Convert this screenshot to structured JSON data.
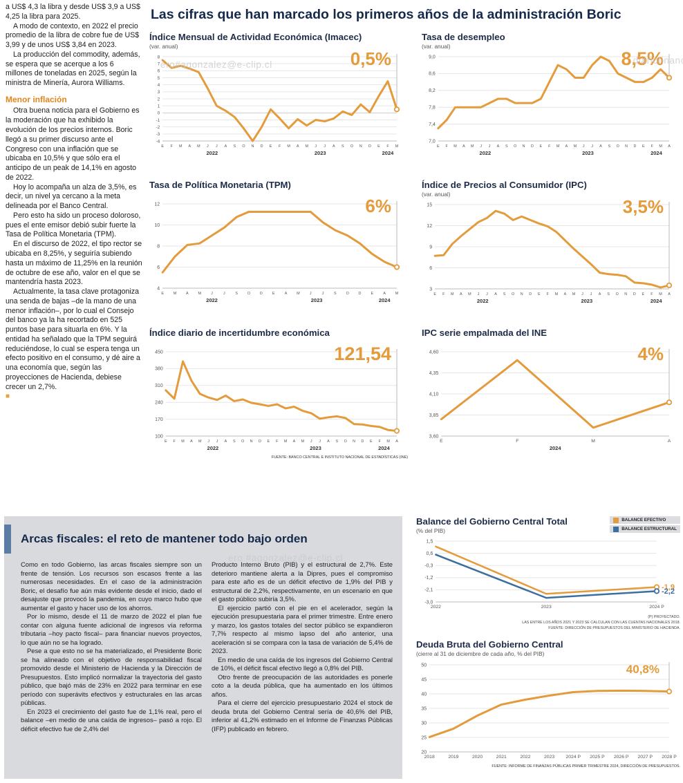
{
  "page": {
    "main_title": "Las cifras que han marcado los primeros años de la administración Boric",
    "watermarks": [
      "ero#agonzalez@e-clip.cl",
      "diariofinanc",
      "ero.#agonzalez@e-clip.cl"
    ],
    "colors": {
      "accent_orange": "#e39b3c",
      "accent_blue": "#3c6e9f",
      "title_navy": "#15294b",
      "heading_orange": "#e0861c",
      "box_gray": "#d9dadd",
      "bar_blue": "#5b7da3"
    }
  },
  "left_article": {
    "paragraphs_top": [
      "a US$ 4,3 la libra y desde US$ 3,9 a US$ 4,25 la libra para 2025.",
      "A modo de contexto, en 2022 el precio promedio de la libra de cobre fue de US$ 3,99 y de unos US$ 3,84 en 2023.",
      "La producción del commodity, además, se espera que se acerque a los 6 millones de toneladas en 2025, según la ministra de Minería, Aurora Williams."
    ],
    "heading": "Menor inflación",
    "paragraphs": [
      "Otra buena noticia para el Gobierno es la moderación que ha exhibido la evolución de los precios internos. Boric llegó a su primer discurso ante el Congreso con una inflación que se ubicaba en 10,5% y que sólo era el anticipo de un peak de 14,1% en agosto de 2022.",
      "Hoy lo acompaña un alza de 3,5%, es decir, un nivel ya cercano a la meta delineada por el Banco Central.",
      "Pero esto ha sido un proceso doloroso, pues el ente emisor debió subir fuerte la Tasa de Política Monetaria (TPM).",
      "En el discurso de 2022, el tipo rector se ubicaba en 8,25%, y seguiría subiendo hasta un máximo de 11,25% en la reunión de octubre de ese año, valor en el que se mantendría hasta 2023.",
      "Actualmente, la tasa clave protagoniza una senda de bajas –de la mano de una menor inflación–, por lo cual el Consejo del banco ya la ha recortado en 525 puntos base para situarla en 6%. Y la entidad ha señalado que la TPM seguirá reduciéndose, lo cual se espera tenga un efecto positivo en el consumo, y dé aire a una economía que, según las proyecciones de Hacienda, debiese crecer un 2,7%."
    ],
    "end_marker": "■"
  },
  "arcas": {
    "title": "Arcas fiscales: el reto de mantener todo bajo orden",
    "col1": [
      "Como en todo Gobierno, las arcas fiscales siempre son un frente de tensión. Los recursos son escasos frente a las numerosas necesidades. En el caso de la administración Boric, el desafío fue aún más evidente desde el inicio, dado el desajuste que provocó la pandemia, en cuyo marco hubo que aumentar el gasto y hacer uso de los ahorros.",
      "Por lo mismo, desde el 11 de marzo de 2022 el plan fue contar con alguna fuente adicional de ingresos vía reforma tributaria –hoy pacto fiscal– para financiar nuevos proyectos, lo que aún no se ha logrado.",
      "Pese a que esto no se ha materializado, el Presidente Boric se ha alineado con el objetivo de responsabilidad fiscal promovido desde el Ministerio de Hacienda y la Dirección de Presupuestos. Esto implicó normalizar la trayectoria del gasto público, que bajó más de 23% en 2022 para terminar en ese período con superávits efectivos y estructurales en las arcas públicas.",
      "En 2023 el crecimiento del gasto fue de 1,1% real, pero el balance –en medio de una caída de ingresos– pasó a rojo. El déficit efectivo fue de 2,4% del"
    ],
    "col2": [
      "Producto Interno Bruto (PIB) y el estructural de 2,7%. Este deterioro mantiene alerta a la Dipres, pues el compromiso para este año es de un déficit efectivo de 1,9% del PIB y estructural de 2,2%, respectivamente, en un escenario en que el gasto público subiría 3,5%.",
      "El ejercicio partió con el pie en el acelerador, según la ejecución presupuestaria para el primer trimestre. Entre enero y marzo, los gastos totales del sector público se expandieron 7,7% respecto al mismo lapso del año anterior, una aceleración si se compara con la tasa de variación de 5,4% de 2023.",
      "En medio de una caída de los ingresos del Gobierno Central de 10%, el déficit fiscal efectivo llegó a 0,8% del PIB.",
      "Otro frente de preocupación de las autoridades es ponerle coto a la deuda pública, que ha aumentado en los últimos años.",
      "Para el cierre del ejercicio presupuestario 2024 el stock de deuda bruta del Gobierno Central sería de 40,6% del PIB, inferior al 41,2% estimado en el Informe de Finanzas Públicas (IFP) publicado en febrero."
    ]
  },
  "chart_data": {
    "imacec": {
      "type": "line",
      "title": "Índice Mensual de Actividad Económica (Imacec)",
      "subtitle": "(var. anual)",
      "highlight": "0,5%",
      "ymin": -4,
      "ymax": 8,
      "yticks": [
        "8",
        "7",
        "6",
        "5",
        "4",
        "3",
        "2",
        "1",
        "0",
        "-1",
        "-2",
        "-3",
        "-4"
      ],
      "xlabels": [
        "E",
        "F",
        "M",
        "A",
        "M",
        "J",
        "J",
        "A",
        "S",
        "O",
        "N",
        "D",
        "E",
        "F",
        "M",
        "A",
        "M",
        "J",
        "J",
        "A",
        "S",
        "O",
        "N",
        "D",
        "E",
        "F",
        "M"
      ],
      "years": [
        {
          "label": "2022",
          "start": 0,
          "end": 11
        },
        {
          "label": "2023",
          "start": 12,
          "end": 23
        },
        {
          "label": "2024",
          "start": 24,
          "end": 26
        }
      ],
      "series": [
        {
          "name": "Imacec",
          "color": "#e39b3c",
          "width": 3,
          "values": [
            7.5,
            6.4,
            6.7,
            6.3,
            5.8,
            3.5,
            1.0,
            0.3,
            -0.6,
            -2.2,
            -4.0,
            -2.0,
            0.5,
            -0.8,
            -2.2,
            -0.9,
            -1.8,
            -1.0,
            -1.2,
            -0.8,
            0.2,
            -0.3,
            1.2,
            0.1,
            2.4,
            4.5,
            0.5
          ]
        }
      ]
    },
    "desempleo": {
      "type": "line",
      "title": "Tasa de desempleo",
      "subtitle": "(var. anual)",
      "highlight": "8,5%",
      "ymin": 7.0,
      "ymax": 9.0,
      "yticks": [
        "9,0",
        "8,6",
        "8,2",
        "7,8",
        "7,4",
        "7,0"
      ],
      "xlabels": [
        "E",
        "F",
        "M",
        "A",
        "M",
        "J",
        "J",
        "A",
        "S",
        "O",
        "N",
        "D",
        "E",
        "F",
        "M",
        "A",
        "M",
        "J",
        "J",
        "A",
        "S",
        "O",
        "N",
        "D",
        "E",
        "F",
        "M",
        "A"
      ],
      "years": [
        {
          "label": "2022",
          "start": 0,
          "end": 11
        },
        {
          "label": "2023",
          "start": 12,
          "end": 23
        },
        {
          "label": "2024",
          "start": 24,
          "end": 27
        }
      ],
      "series": [
        {
          "name": "Tasa de desempleo",
          "color": "#e39b3c",
          "width": 3,
          "values": [
            7.3,
            7.5,
            7.8,
            7.8,
            7.8,
            7.8,
            7.9,
            8.0,
            8.0,
            7.9,
            7.9,
            7.9,
            8.0,
            8.4,
            8.8,
            8.7,
            8.5,
            8.5,
            8.8,
            9.0,
            8.9,
            8.6,
            8.5,
            8.4,
            8.4,
            8.5,
            8.7,
            8.5
          ]
        }
      ]
    },
    "tpm": {
      "type": "line",
      "title": "Tasa de Política Monetaria (TPM)",
      "subtitle": "",
      "highlight": "6%",
      "ymin": 4,
      "ymax": 12,
      "yticks": [
        "12",
        "10",
        "8",
        "6",
        "4"
      ],
      "xlabels": [
        "E",
        "M",
        "A",
        "M",
        "J",
        "J",
        "S",
        "O",
        "D",
        "E",
        "A",
        "M",
        "J",
        "J",
        "S",
        "O",
        "D",
        "E",
        "A",
        "M"
      ],
      "years": [
        {
          "label": "2022",
          "start": 0,
          "end": 8
        },
        {
          "label": "2023",
          "start": 9,
          "end": 16
        },
        {
          "label": "2024",
          "start": 17,
          "end": 19
        }
      ],
      "series": [
        {
          "name": "TPM",
          "color": "#e39b3c",
          "width": 3,
          "values": [
            5.5,
            7.0,
            8.1,
            8.25,
            9.0,
            9.75,
            10.75,
            11.25,
            11.25,
            11.25,
            11.25,
            11.25,
            11.25,
            10.25,
            9.5,
            9.0,
            8.25,
            7.25,
            6.5,
            6.0
          ]
        }
      ]
    },
    "ipc": {
      "type": "line",
      "title": "Índice de Precios al Consumidor (IPC)",
      "subtitle": "(var. anual)",
      "highlight": "3,5%",
      "ymin": 3,
      "ymax": 15,
      "yticks": [
        "15",
        "12",
        "9",
        "6",
        "3"
      ],
      "xlabels": [
        "E",
        "F",
        "M",
        "A",
        "M",
        "J",
        "J",
        "A",
        "S",
        "O",
        "N",
        "D",
        "E",
        "F",
        "M",
        "A",
        "M",
        "J",
        "J",
        "A",
        "S",
        "O",
        "N",
        "D",
        "E",
        "F",
        "M",
        "A"
      ],
      "years": [
        {
          "label": "2022",
          "start": 0,
          "end": 11
        },
        {
          "label": "2023",
          "start": 12,
          "end": 23
        },
        {
          "label": "2024",
          "start": 24,
          "end": 27
        }
      ],
      "series": [
        {
          "name": "IPC",
          "color": "#e39b3c",
          "width": 3,
          "values": [
            7.7,
            7.8,
            9.4,
            10.5,
            11.5,
            12.5,
            13.1,
            14.1,
            13.7,
            12.8,
            13.3,
            12.8,
            12.3,
            11.9,
            11.1,
            9.9,
            8.7,
            7.6,
            6.5,
            5.3,
            5.1,
            5.0,
            4.8,
            3.9,
            3.8,
            3.6,
            3.2,
            3.5
          ]
        }
      ]
    },
    "incertidumbre": {
      "type": "line",
      "title": "Índice diario de incertidumbre económica",
      "subtitle": "",
      "highlight": "121,54",
      "source": "FUENTE: BANCO CENTRAL E INSTITUTO NACIONAL DE ESTADÍSTICAS (INE)",
      "ymin": 100,
      "ymax": 450,
      "yticks": [
        "450",
        "380",
        "310",
        "240",
        "170",
        "100"
      ],
      "xlabels": [
        "E",
        "F",
        "M",
        "A",
        "M",
        "J",
        "J",
        "A",
        "S",
        "O",
        "N",
        "D",
        "E",
        "F",
        "M",
        "A",
        "M",
        "J",
        "J",
        "A",
        "S",
        "O",
        "N",
        "D",
        "E",
        "F",
        "M",
        "A"
      ],
      "years": [
        {
          "label": "2022",
          "start": 0,
          "end": 11
        },
        {
          "label": "2023",
          "start": 12,
          "end": 23
        },
        {
          "label": "2024",
          "start": 24,
          "end": 27
        }
      ],
      "series": [
        {
          "name": "Incertidumbre económica",
          "color": "#e39b3c",
          "width": 3,
          "values": [
            290,
            255,
            410,
            330,
            275,
            260,
            250,
            268,
            245,
            252,
            238,
            232,
            225,
            232,
            215,
            222,
            205,
            195,
            172,
            178,
            182,
            175,
            150,
            148,
            142,
            138,
            125,
            121.54
          ]
        }
      ]
    },
    "ipc_ine": {
      "type": "line",
      "title": "IPC serie empalmada del INE",
      "subtitle": "",
      "highlight": "4%",
      "ymin": 3.6,
      "ymax": 4.6,
      "yticks": [
        "4,60",
        "4,35",
        "4,10",
        "3,85",
        "3,60"
      ],
      "xlabels": [
        "E",
        "F",
        "M",
        "A"
      ],
      "years": [
        {
          "label": "2024",
          "start": 0,
          "end": 3
        }
      ],
      "series": [
        {
          "name": "IPC serie empalmada",
          "color": "#e39b3c",
          "width": 3,
          "values": [
            3.8,
            4.5,
            3.7,
            4.0
          ]
        }
      ]
    },
    "balance": {
      "type": "line",
      "title": "Balance del Gobierno Central Total",
      "subtitle": "(% del PIB)",
      "ymin": -3.0,
      "ymax": 1.5,
      "yticks": [
        "1,5",
        "0,6",
        "-0,3",
        "-1,2",
        "-2,1",
        "-3,0"
      ],
      "xlabels": [
        "2022",
        "2023",
        "2024 P"
      ],
      "footnotes": [
        "(P) PROYECTADO.",
        "LAS ENTRE LOS AÑOS 2021 Y 2023 SE CALCULAN CON LAS CUENTAS NACIONALES 2018.",
        "FUENTE: DIRECCIÓN DE PRESUPUESTOS DEL MINISTERIO DE HACIENDA."
      ],
      "series": [
        {
          "name": "BALANCE EFECTIVO",
          "color": "#e39b3c",
          "width": 2.5,
          "end_label": "-1,9",
          "values": [
            1.1,
            -2.4,
            -1.9
          ]
        },
        {
          "name": "BALANCE ESTRUCTURAL",
          "color": "#3c6e9f",
          "width": 2.5,
          "end_label": "-2,2",
          "values": [
            0.5,
            -2.7,
            -2.2
          ]
        }
      ]
    },
    "deuda": {
      "type": "line",
      "title": "Deuda Bruta del Gobierno Central",
      "subtitle": "(cierre al 31 de diciembre de cada año, % del PIB)",
      "highlight": "40,8%",
      "source": "FUENTE: INFORME DE FINANZAS PÚBLICAS PRIMER TRIMESTRE 2024, DIRECCIÓN DE PRESUPUESTOS.",
      "ymin": 20,
      "ymax": 50,
      "yticks": [
        "50",
        "45",
        "40",
        "35",
        "30",
        "25",
        "20"
      ],
      "xlabels": [
        "2018",
        "2019",
        "2020",
        "2021",
        "2022",
        "2023",
        "2024 P",
        "2025 P",
        "2026 P",
        "2027 P",
        "2028 P"
      ],
      "series": [
        {
          "name": "Deuda bruta",
          "color": "#e39b3c",
          "width": 3,
          "values": [
            25.1,
            28.0,
            32.5,
            36.3,
            38.0,
            39.4,
            40.6,
            41.0,
            41.1,
            41.0,
            40.8
          ]
        }
      ]
    }
  }
}
